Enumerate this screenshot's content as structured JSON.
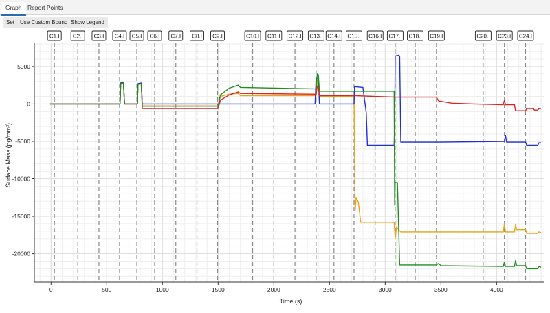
{
  "tabs": [
    {
      "label": "Graph",
      "active": true
    },
    {
      "label": "Report Points",
      "active": false
    }
  ],
  "toolbar": {
    "set_label": "Set",
    "custom_bounds_label": "Use Custom Bounds",
    "show_legend_label": "Show Legend"
  },
  "chart_data": {
    "type": "line",
    "xlabel": "Time (s)",
    "ylabel": "Surface Mass (pg/mm²)",
    "xlim": [
      -150,
      4430
    ],
    "ylim": [
      -23800,
      8200
    ],
    "xticks": [
      0,
      500,
      1000,
      1500,
      2000,
      2500,
      3000,
      3500,
      4000
    ],
    "yticks": [
      5000,
      0,
      -5000,
      -10000,
      -15000,
      -20000
    ],
    "grid": true,
    "markers": [
      {
        "label": "C1.I",
        "x": 30
      },
      {
        "label": "C2.I",
        "x": 240
      },
      {
        "label": "C3.I",
        "x": 430
      },
      {
        "label": "C4.I",
        "x": 615
      },
      {
        "label": "C5.I",
        "x": 770
      },
      {
        "label": "C6.I",
        "x": 930
      },
      {
        "label": "C7.I",
        "x": 1120
      },
      {
        "label": "C8.I",
        "x": 1310
      },
      {
        "label": "C9.I",
        "x": 1495
      },
      {
        "label": "C10.I",
        "x": 1810
      },
      {
        "label": "C11.I",
        "x": 2000
      },
      {
        "label": "C12.I",
        "x": 2190
      },
      {
        "label": "C13.I",
        "x": 2380
      },
      {
        "label": "C14.I",
        "x": 2540
      },
      {
        "label": "C15.I",
        "x": 2720
      },
      {
        "label": "C16.I",
        "x": 2910
      },
      {
        "label": "C17.I",
        "x": 3090
      },
      {
        "label": "C18.I",
        "x": 3270
      },
      {
        "label": "C19.I",
        "x": 3460
      },
      {
        "label": "C20.I",
        "x": 3880
      },
      {
        "label": "C23.I",
        "x": 4070
      },
      {
        "label": "C24.I",
        "x": 4260
      }
    ],
    "series": [
      {
        "color": "#e8a317",
        "points": [
          [
            -10,
            0
          ],
          [
            620,
            0
          ],
          [
            625,
            2700
          ],
          [
            650,
            2800
          ],
          [
            660,
            0
          ],
          [
            775,
            0
          ],
          [
            780,
            2600
          ],
          [
            810,
            2700
          ],
          [
            820,
            -250
          ],
          [
            1500,
            -250
          ],
          [
            1520,
            1000
          ],
          [
            1600,
            1300
          ],
          [
            1680,
            1400
          ],
          [
            1700,
            1100
          ],
          [
            2380,
            1100
          ],
          [
            2390,
            3200
          ],
          [
            2400,
            3100
          ],
          [
            2410,
            1000
          ],
          [
            2720,
            1000
          ],
          [
            2730,
            -14200
          ],
          [
            2740,
            -12500
          ],
          [
            2760,
            -13200
          ],
          [
            2780,
            -15800
          ],
          [
            3080,
            -15800
          ],
          [
            3090,
            -18000
          ],
          [
            3100,
            -16400
          ],
          [
            3120,
            -16800
          ],
          [
            3140,
            -17100
          ],
          [
            4060,
            -17100
          ],
          [
            4070,
            -16000
          ],
          [
            4080,
            -17100
          ],
          [
            4160,
            -17100
          ],
          [
            4170,
            -16100
          ],
          [
            4180,
            -16800
          ],
          [
            4260,
            -16800
          ],
          [
            4270,
            -17300
          ],
          [
            4370,
            -17300
          ],
          [
            4380,
            -17100
          ],
          [
            4400,
            -17200
          ]
        ]
      },
      {
        "color": "#1f2fd6",
        "points": [
          [
            -10,
            0
          ],
          [
            620,
            0
          ],
          [
            625,
            2800
          ],
          [
            650,
            2900
          ],
          [
            660,
            0
          ],
          [
            775,
            0
          ],
          [
            780,
            2700
          ],
          [
            810,
            2800
          ],
          [
            820,
            0
          ],
          [
            1500,
            0
          ],
          [
            2370,
            0
          ],
          [
            2380,
            3500
          ],
          [
            2400,
            3400
          ],
          [
            2410,
            0
          ],
          [
            2720,
            0
          ],
          [
            2725,
            2300
          ],
          [
            2800,
            2200
          ],
          [
            2830,
            -1200
          ],
          [
            2840,
            -5500
          ],
          [
            2900,
            -5500
          ],
          [
            3080,
            -5500
          ],
          [
            3085,
            -3000
          ],
          [
            3090,
            6400
          ],
          [
            3120,
            6500
          ],
          [
            3130,
            6400
          ],
          [
            3140,
            -5100
          ],
          [
            3500,
            -5100
          ],
          [
            4070,
            -5000
          ],
          [
            4080,
            -4200
          ],
          [
            4090,
            -5100
          ],
          [
            4260,
            -5100
          ],
          [
            4270,
            -5500
          ],
          [
            4370,
            -5500
          ],
          [
            4380,
            -5200
          ],
          [
            4400,
            -5200
          ]
        ]
      },
      {
        "color": "#dd2222",
        "points": [
          [
            -10,
            0
          ],
          [
            620,
            0
          ],
          [
            625,
            2700
          ],
          [
            650,
            2800
          ],
          [
            660,
            0
          ],
          [
            775,
            0
          ],
          [
            780,
            2600
          ],
          [
            810,
            2700
          ],
          [
            820,
            -600
          ],
          [
            1500,
            -600
          ],
          [
            1520,
            500
          ],
          [
            1600,
            1200
          ],
          [
            1680,
            1600
          ],
          [
            1700,
            1400
          ],
          [
            2380,
            1300
          ],
          [
            2390,
            2400
          ],
          [
            2400,
            2300
          ],
          [
            2410,
            1100
          ],
          [
            2720,
            1100
          ],
          [
            3090,
            900
          ],
          [
            3460,
            900
          ],
          [
            3480,
            400
          ],
          [
            3600,
            100
          ],
          [
            3800,
            0
          ],
          [
            4060,
            -100
          ],
          [
            4070,
            500
          ],
          [
            4080,
            -100
          ],
          [
            4160,
            -100
          ],
          [
            4170,
            -900
          ],
          [
            4260,
            -900
          ],
          [
            4270,
            -600
          ],
          [
            4330,
            -600
          ],
          [
            4340,
            -800
          ],
          [
            4370,
            -800
          ],
          [
            4380,
            -600
          ],
          [
            4400,
            -600
          ]
        ]
      },
      {
        "color": "#1e8f1e",
        "points": [
          [
            -10,
            0
          ],
          [
            620,
            0
          ],
          [
            625,
            2700
          ],
          [
            650,
            2800
          ],
          [
            660,
            0
          ],
          [
            775,
            0
          ],
          [
            780,
            2600
          ],
          [
            810,
            2700
          ],
          [
            820,
            -300
          ],
          [
            1500,
            -300
          ],
          [
            1520,
            1200
          ],
          [
            1600,
            2100
          ],
          [
            1680,
            2500
          ],
          [
            1700,
            2200
          ],
          [
            2380,
            2000
          ],
          [
            2390,
            4000
          ],
          [
            2400,
            3900
          ],
          [
            2410,
            1700
          ],
          [
            2720,
            1700
          ],
          [
            3080,
            1700
          ],
          [
            3085,
            -13500
          ],
          [
            3090,
            -10500
          ],
          [
            3110,
            -10500
          ],
          [
            3130,
            -21500
          ],
          [
            3460,
            -21500
          ],
          [
            3480,
            -21300
          ],
          [
            3500,
            -21600
          ],
          [
            4060,
            -21700
          ],
          [
            4070,
            -21100
          ],
          [
            4080,
            -21700
          ],
          [
            4160,
            -21700
          ],
          [
            4170,
            -20900
          ],
          [
            4180,
            -21600
          ],
          [
            4260,
            -21600
          ],
          [
            4270,
            -22000
          ],
          [
            4370,
            -22000
          ],
          [
            4380,
            -21700
          ],
          [
            4400,
            -21800
          ]
        ]
      }
    ]
  }
}
